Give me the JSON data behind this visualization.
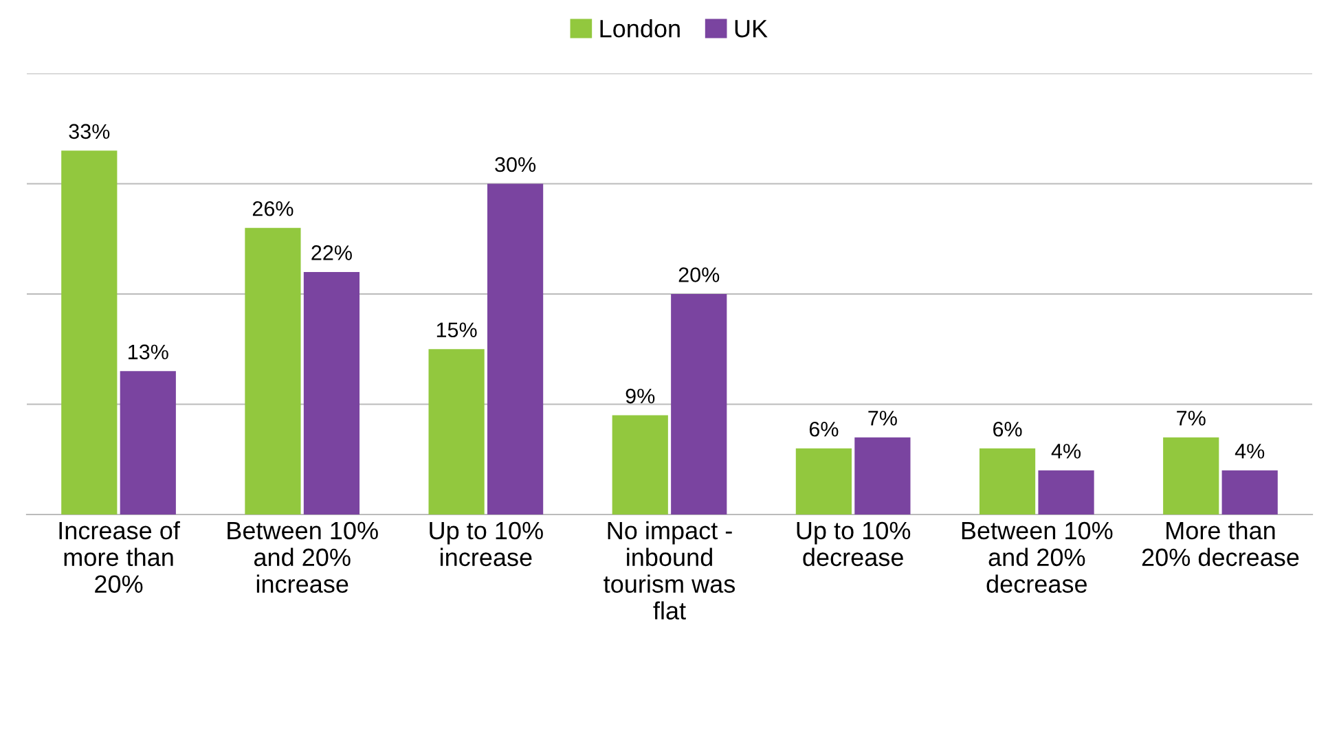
{
  "chart_data": {
    "type": "bar",
    "categories": [
      "Increase of more than 20%",
      "Between 10% and 20% increase",
      "Up to 10% increase",
      "No impact - inbound tourism was flat",
      "Up to 10% decrease",
      "Between 10% and 20% decrease",
      "More than 20% decrease"
    ],
    "series": [
      {
        "name": "London",
        "color": "#92c83e",
        "values": [
          33,
          26,
          15,
          9,
          6,
          6,
          7
        ],
        "value_labels": [
          "33%",
          "26%",
          "15%",
          "9%",
          "6%",
          "6%",
          "7%"
        ]
      },
      {
        "name": "UK",
        "color": "#7a44a0",
        "values": [
          13,
          22,
          30,
          20,
          7,
          4,
          4
        ],
        "value_labels": [
          "13%",
          "22%",
          "30%",
          "20%",
          "7%",
          "4%",
          "4%"
        ]
      }
    ],
    "ylim": [
      0,
      40
    ],
    "yticks": [
      {
        "value": 0,
        "label": null
      },
      {
        "value": 10,
        "label": null
      },
      {
        "value": 20,
        "label": null
      },
      {
        "value": 30,
        "label": null
      },
      {
        "value": 40,
        "label": null
      }
    ],
    "grid": "y",
    "legend": "top",
    "tick_labels": "x"
  }
}
